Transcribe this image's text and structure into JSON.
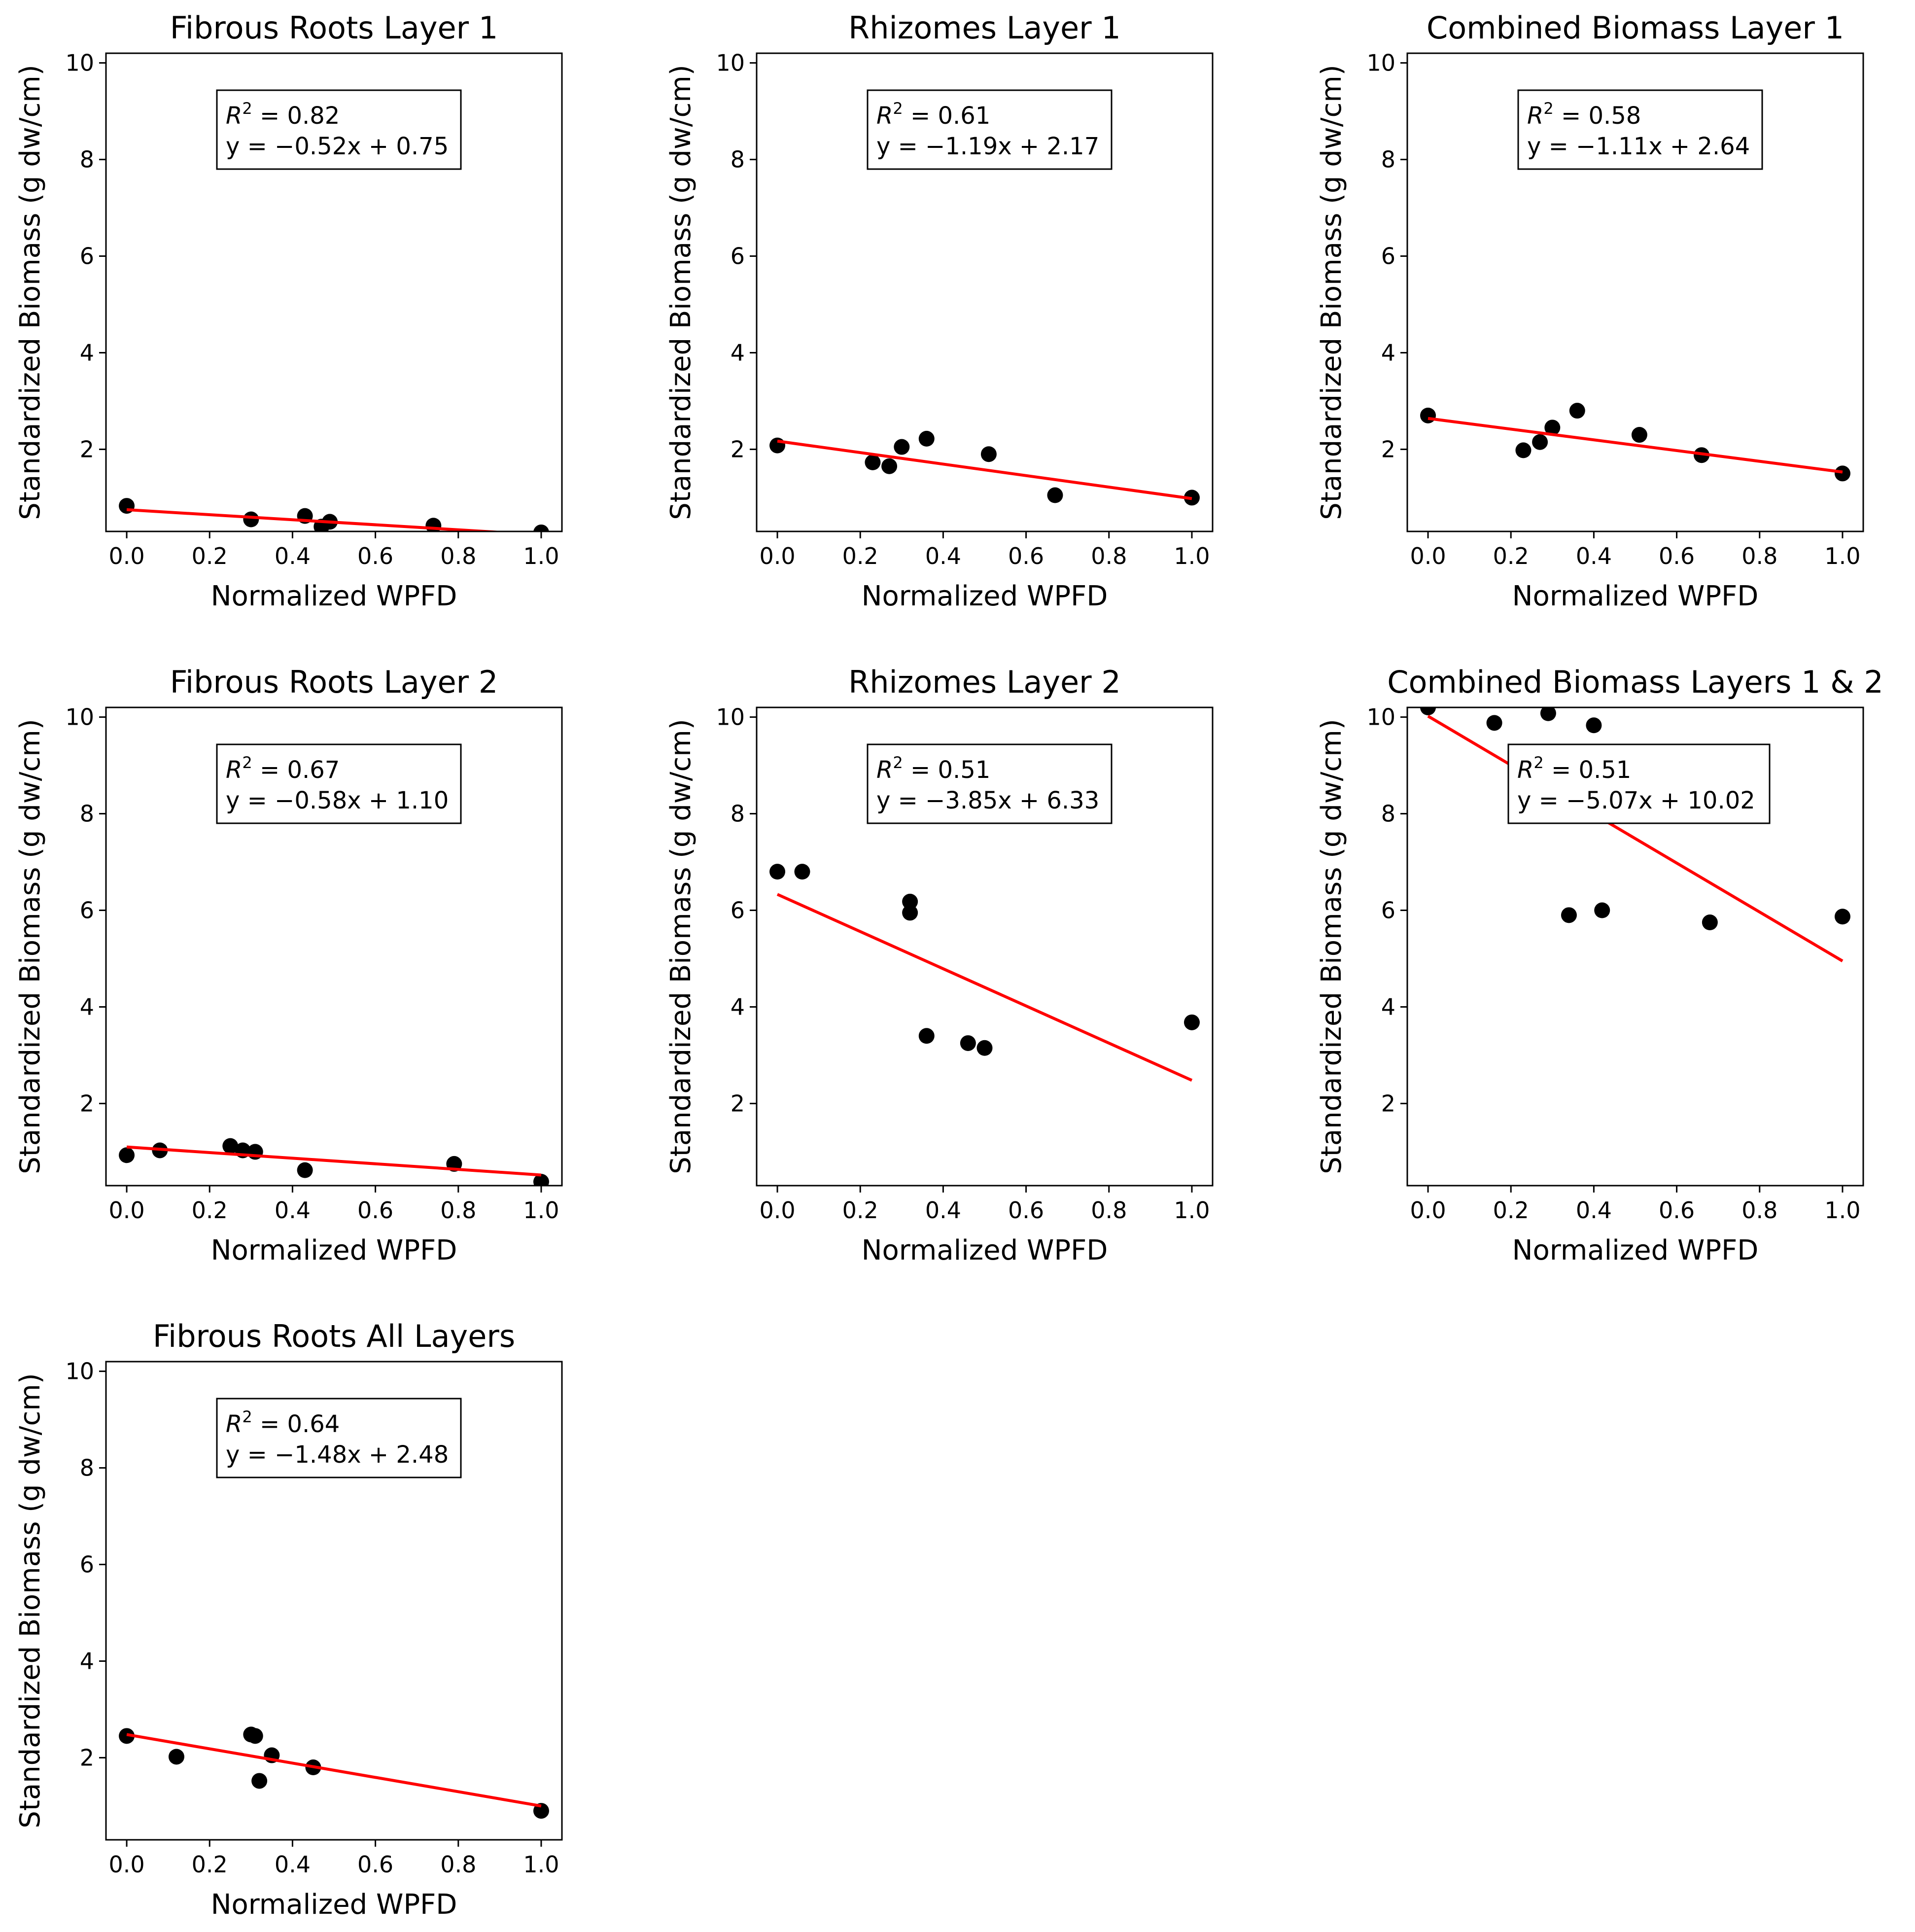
{
  "chart_data": [
    {
      "type": "scatter",
      "title": "Fibrous Roots Layer 1",
      "xlabel": "Normalized WPFD",
      "ylabel": "Standardized Biomass (g dw/cm)",
      "xlim": [
        -0.05,
        1.05
      ],
      "ylim": [
        0.3,
        10.2
      ],
      "xticks": [
        "0.0",
        "0.2",
        "0.4",
        "0.6",
        "0.8",
        "1.0"
      ],
      "yticks": [
        "2",
        "4",
        "6",
        "8",
        "10"
      ],
      "grid": false,
      "points": [
        [
          0.0,
          0.83
        ],
        [
          0.3,
          0.55
        ],
        [
          0.43,
          0.62
        ],
        [
          0.47,
          0.4
        ],
        [
          0.49,
          0.5
        ],
        [
          0.74,
          0.42
        ],
        [
          1.0,
          0.28
        ]
      ],
      "fit": {
        "slope": -0.52,
        "intercept": 0.75
      },
      "annotation": {
        "r2_label": "R",
        "r2_value": " = 0.82",
        "equation": "y = −0.52x + 0.75",
        "placement": "top-right"
      }
    },
    {
      "type": "scatter",
      "title": "Rhizomes Layer 1",
      "xlabel": "Normalized WPFD",
      "ylabel": "Standardized Biomass (g dw/cm)",
      "xlim": [
        -0.05,
        1.05
      ],
      "ylim": [
        0.3,
        10.2
      ],
      "xticks": [
        "0.0",
        "0.2",
        "0.4",
        "0.6",
        "0.8",
        "1.0"
      ],
      "yticks": [
        "2",
        "4",
        "6",
        "8",
        "10"
      ],
      "grid": false,
      "points": [
        [
          0.0,
          2.08
        ],
        [
          0.23,
          1.73
        ],
        [
          0.27,
          1.65
        ],
        [
          0.3,
          2.05
        ],
        [
          0.36,
          2.22
        ],
        [
          0.51,
          1.9
        ],
        [
          0.67,
          1.05
        ],
        [
          1.0,
          1.0
        ]
      ],
      "fit": {
        "slope": -1.19,
        "intercept": 2.17
      },
      "annotation": {
        "r2_label": "R",
        "r2_value": " = 0.61",
        "equation": "y = −1.19x + 2.17",
        "placement": "top-right"
      }
    },
    {
      "type": "scatter",
      "title": "Combined Biomass Layer 1",
      "xlabel": "Normalized WPFD",
      "ylabel": "Standardized Biomass (g dw/cm)",
      "xlim": [
        -0.05,
        1.05
      ],
      "ylim": [
        0.3,
        10.2
      ],
      "xticks": [
        "0.0",
        "0.2",
        "0.4",
        "0.6",
        "0.8",
        "1.0"
      ],
      "yticks": [
        "2",
        "4",
        "6",
        "8",
        "10"
      ],
      "grid": false,
      "points": [
        [
          0.0,
          2.7
        ],
        [
          0.23,
          1.98
        ],
        [
          0.27,
          2.15
        ],
        [
          0.3,
          2.45
        ],
        [
          0.36,
          2.8
        ],
        [
          0.51,
          2.3
        ],
        [
          0.66,
          1.88
        ],
        [
          1.0,
          1.5
        ]
      ],
      "fit": {
        "slope": -1.11,
        "intercept": 2.64
      },
      "annotation": {
        "r2_label": "R",
        "r2_value": " = 0.58",
        "equation": "y = −1.11x + 2.64",
        "placement": "top-right"
      }
    },
    {
      "type": "scatter",
      "title": "Fibrous Roots Layer 2",
      "xlabel": "Normalized WPFD",
      "ylabel": "Standardized Biomass (g dw/cm)",
      "xlim": [
        -0.05,
        1.05
      ],
      "ylim": [
        0.3,
        10.2
      ],
      "xticks": [
        "0.0",
        "0.2",
        "0.4",
        "0.6",
        "0.8",
        "1.0"
      ],
      "yticks": [
        "2",
        "4",
        "6",
        "8",
        "10"
      ],
      "grid": false,
      "points": [
        [
          0.0,
          0.93
        ],
        [
          0.08,
          1.03
        ],
        [
          0.25,
          1.12
        ],
        [
          0.28,
          1.03
        ],
        [
          0.31,
          1.0
        ],
        [
          0.43,
          0.62
        ],
        [
          0.79,
          0.75
        ],
        [
          1.0,
          0.38
        ]
      ],
      "fit": {
        "slope": -0.58,
        "intercept": 1.1
      },
      "annotation": {
        "r2_label": "R",
        "r2_value": " = 0.67",
        "equation": "y = −0.58x + 1.10",
        "placement": "top-right"
      }
    },
    {
      "type": "scatter",
      "title": "Rhizomes Layer 2",
      "xlabel": "Normalized WPFD",
      "ylabel": "Standardized Biomass (g dw/cm)",
      "xlim": [
        -0.05,
        1.05
      ],
      "ylim": [
        0.3,
        10.2
      ],
      "xticks": [
        "0.0",
        "0.2",
        "0.4",
        "0.6",
        "0.8",
        "1.0"
      ],
      "yticks": [
        "2",
        "4",
        "6",
        "8",
        "10"
      ],
      "grid": false,
      "points": [
        [
          0.0,
          6.8
        ],
        [
          0.06,
          6.8
        ],
        [
          0.32,
          6.18
        ],
        [
          0.32,
          5.95
        ],
        [
          0.36,
          3.4
        ],
        [
          0.46,
          3.25
        ],
        [
          0.5,
          3.15
        ],
        [
          1.0,
          3.68
        ]
      ],
      "fit": {
        "slope": -3.85,
        "intercept": 6.33
      },
      "annotation": {
        "r2_label": "R",
        "r2_value": " = 0.51",
        "equation": "y = −3.85x + 6.33",
        "placement": "top-right"
      }
    },
    {
      "type": "scatter",
      "title": "Combined Biomass Layers 1 & 2",
      "xlabel": "Normalized WPFD",
      "ylabel": "Standardized Biomass (g dw/cm)",
      "xlim": [
        -0.05,
        1.05
      ],
      "ylim": [
        0.3,
        10.2
      ],
      "xticks": [
        "0.0",
        "0.2",
        "0.4",
        "0.6",
        "0.8",
        "1.0"
      ],
      "yticks": [
        "2",
        "4",
        "6",
        "8",
        "10"
      ],
      "grid": false,
      "points": [
        [
          0.0,
          10.2
        ],
        [
          0.16,
          9.88
        ],
        [
          0.29,
          10.08
        ],
        [
          0.4,
          9.83
        ],
        [
          0.34,
          5.9
        ],
        [
          0.42,
          6.0
        ],
        [
          0.68,
          5.75
        ],
        [
          1.0,
          5.87
        ]
      ],
      "fit": {
        "slope": -5.07,
        "intercept": 10.02
      },
      "annotation": {
        "r2_label": "R",
        "r2_value": " = 0.51",
        "equation": "y = −5.07x + 10.02",
        "placement": "top-right"
      }
    },
    {
      "type": "scatter",
      "title": "Fibrous Roots All Layers",
      "xlabel": "Normalized WPFD",
      "ylabel": "Standardized Biomass (g dw/cm)",
      "xlim": [
        -0.05,
        1.05
      ],
      "ylim": [
        0.3,
        10.2
      ],
      "xticks": [
        "0.0",
        "0.2",
        "0.4",
        "0.6",
        "0.8",
        "1.0"
      ],
      "yticks": [
        "2",
        "4",
        "6",
        "8",
        "10"
      ],
      "grid": false,
      "points": [
        [
          0.0,
          2.45
        ],
        [
          0.12,
          2.02
        ],
        [
          0.3,
          2.48
        ],
        [
          0.31,
          2.45
        ],
        [
          0.32,
          1.52
        ],
        [
          0.35,
          2.05
        ],
        [
          0.45,
          1.8
        ],
        [
          1.0,
          0.9
        ]
      ],
      "fit": {
        "slope": -1.48,
        "intercept": 2.48
      },
      "annotation": {
        "r2_label": "R",
        "r2_value": " = 0.64",
        "equation": "y = −1.48x + 2.48",
        "placement": "top-right"
      }
    }
  ],
  "colors": {
    "points": "#000000",
    "fit_line": "#ff0000",
    "axes": "#000000",
    "background": "#ffffff"
  }
}
